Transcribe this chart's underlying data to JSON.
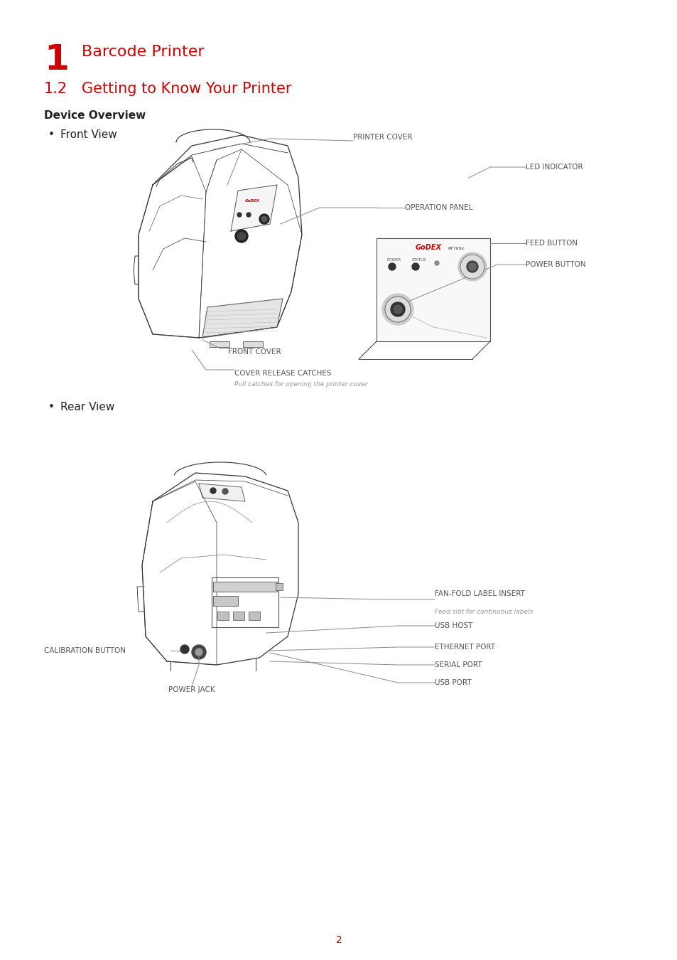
{
  "background_color": "#ffffff",
  "page_number": "2",
  "title_number": "1",
  "title_text": "Barcode Printer",
  "subtitle_num": "1.2",
  "subtitle_text": "Getting to Know Your Printer",
  "section_title": "Device Overview",
  "bullet_front": "Front View",
  "bullet_rear": "Rear View",
  "title_color": "#cc0000",
  "text_color": "#222222",
  "label_color": "#555555",
  "line_color": "#888888",
  "label_fs": 7.5,
  "sub_label_fs": 6.5
}
